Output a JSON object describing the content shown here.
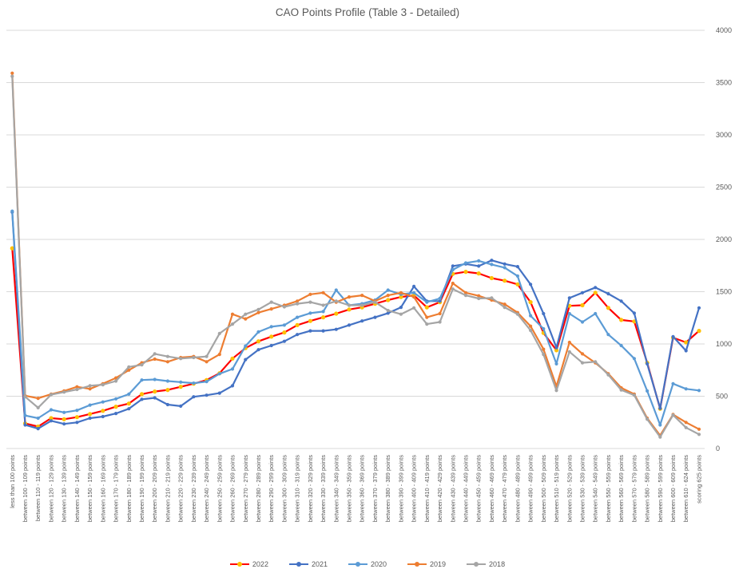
{
  "title": "CAO Points Profile (Table 3 - Detailed)",
  "chart_data": {
    "type": "line",
    "title": "CAO Points Profile (Table 3 - Detailed)",
    "xlabel": "",
    "ylabel": "",
    "y_axis": {
      "min": 0,
      "max": 4000,
      "step": 500,
      "position": "right",
      "ticks": [
        "0",
        "500",
        "1000",
        "1500",
        "2000",
        "2500",
        "3000",
        "3500",
        "4000"
      ]
    },
    "grid": true,
    "legend_position": "bottom",
    "colors": {
      "grid": "#d9d9d9",
      "text": "#595959",
      "background": "#ffffff"
    },
    "categories": [
      "less than 100 points",
      "between 100 - 109 points",
      "between 110 - 119 points",
      "between 120 - 129 points",
      "between 130 - 139 points",
      "between 140 - 149 points",
      "between 150 - 159 points",
      "between 160 - 169 points",
      "between 170 - 179 points",
      "between 180 - 189 points",
      "between 190 - 199 points",
      "between 200 - 209 points",
      "between 210 - 219 points",
      "between 220 - 229 points",
      "between 230 - 239 points",
      "between 240 - 249 points",
      "between 250 - 259 points",
      "between 260 - 269 points",
      "between 270 - 279 points",
      "between 280 - 289 points",
      "between 290 - 299 points",
      "between 300 - 309 points",
      "between 310 - 319 points",
      "between 320 - 329 points",
      "between 330 - 339 points",
      "between 340 - 349 points",
      "between 350 - 359 points",
      "between 360 - 369 points",
      "between 370 - 379 points",
      "between 380 - 389 points",
      "between 390 - 399 points",
      "between 400 - 409 points",
      "between 410 - 419 points",
      "between 420 - 429 points",
      "between 430 - 439 points",
      "between 440 - 449 points",
      "between 450 - 459 points",
      "between 460 - 469 points",
      "between 470 - 479 points",
      "between 480 - 489 points",
      "between 490 - 499 points",
      "between 500 - 509 points",
      "between 510 - 519 points",
      "between 520 - 529 points",
      "between 530 - 539 points",
      "between 540 - 549 points",
      "between 550 - 559 points",
      "between 560 - 569 points",
      "between 570 - 579 points",
      "between 580 - 589 points",
      "between 590 - 599 points",
      "between 600 - 609 points",
      "between 610 - 624 points",
      "scoring 625 points"
    ],
    "series": [
      {
        "name": "2022",
        "color": "#ff0000",
        "marker_color": "#ffc000",
        "values": [
          1915,
          240,
          210,
          290,
          280,
          300,
          330,
          360,
          400,
          430,
          520,
          545,
          560,
          590,
          620,
          655,
          720,
          860,
          960,
          1025,
          1070,
          1110,
          1180,
          1220,
          1255,
          1290,
          1330,
          1350,
          1385,
          1420,
          1450,
          1465,
          1350,
          1400,
          1670,
          1690,
          1675,
          1630,
          1605,
          1570,
          1400,
          1105,
          940,
          1365,
          1370,
          1490,
          1345,
          1230,
          1215,
          820,
          380,
          1060,
          1015,
          1125
        ]
      },
      {
        "name": "2021",
        "color": "#4472c4",
        "marker_color": "#4472c4",
        "values": [
          2260,
          225,
          190,
          265,
          235,
          250,
          290,
          305,
          335,
          380,
          470,
          485,
          420,
          405,
          495,
          510,
          530,
          600,
          850,
          945,
          985,
          1025,
          1090,
          1125,
          1125,
          1140,
          1180,
          1220,
          1255,
          1295,
          1350,
          1550,
          1410,
          1410,
          1745,
          1765,
          1745,
          1800,
          1765,
          1740,
          1570,
          1290,
          965,
          1440,
          1490,
          1540,
          1480,
          1410,
          1295,
          810,
          385,
          1070,
          935,
          1345
        ]
      },
      {
        "name": "2020",
        "color": "#5b9bd5",
        "marker_color": "#5b9bd5",
        "values": [
          2270,
          315,
          290,
          370,
          345,
          365,
          415,
          445,
          475,
          520,
          655,
          660,
          645,
          635,
          625,
          640,
          715,
          760,
          980,
          1115,
          1165,
          1180,
          1255,
          1295,
          1310,
          1515,
          1370,
          1385,
          1420,
          1515,
          1475,
          1490,
          1400,
          1435,
          1710,
          1775,
          1795,
          1760,
          1730,
          1650,
          1270,
          1145,
          810,
          1290,
          1210,
          1290,
          1090,
          985,
          860,
          550,
          225,
          620,
          570,
          555
        ]
      },
      {
        "name": "2019",
        "color": "#ed7d31",
        "marker_color": "#ed7d31",
        "values": [
          3590,
          505,
          480,
          520,
          550,
          590,
          570,
          620,
          675,
          750,
          820,
          855,
          830,
          870,
          880,
          830,
          900,
          1285,
          1240,
          1300,
          1335,
          1370,
          1410,
          1475,
          1490,
          1400,
          1450,
          1465,
          1410,
          1465,
          1490,
          1450,
          1255,
          1290,
          1580,
          1490,
          1460,
          1420,
          1380,
          1300,
          1170,
          950,
          595,
          1015,
          905,
          820,
          715,
          580,
          520,
          290,
          125,
          325,
          250,
          185
        ]
      },
      {
        "name": "2018",
        "color": "#a5a5a5",
        "marker_color": "#a5a5a5",
        "values": [
          3560,
          495,
          390,
          515,
          540,
          565,
          600,
          610,
          645,
          780,
          800,
          905,
          880,
          860,
          870,
          880,
          1100,
          1190,
          1285,
          1330,
          1400,
          1355,
          1385,
          1400,
          1370,
          1410,
          1370,
          1370,
          1400,
          1320,
          1285,
          1345,
          1190,
          1210,
          1525,
          1465,
          1435,
          1440,
          1350,
          1285,
          1130,
          900,
          555,
          925,
          820,
          830,
          705,
          560,
          510,
          280,
          110,
          320,
          200,
          135
        ]
      }
    ]
  }
}
